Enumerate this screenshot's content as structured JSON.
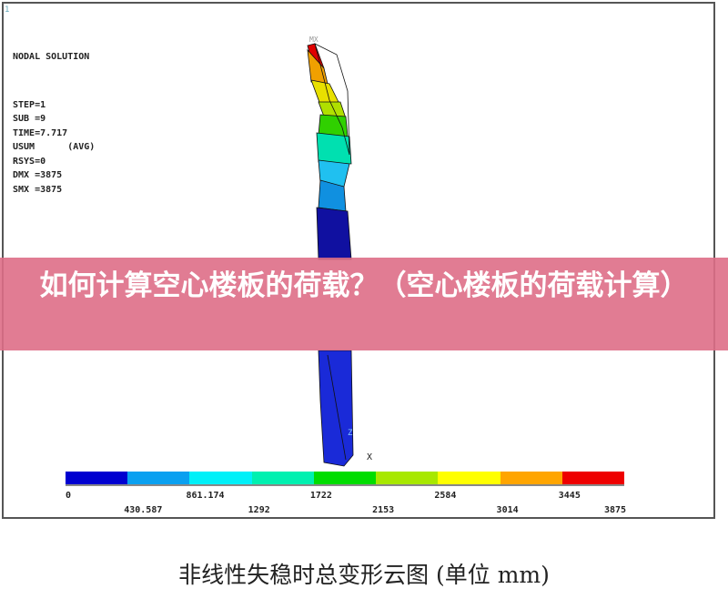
{
  "plot": {
    "window_number": "1",
    "title": "NODAL SOLUTION",
    "lines": [
      "STEP=1",
      "SUB =9",
      "TIME=7.717",
      "USUM      (AVG)",
      "RSYS=0",
      "DMX =3875",
      "SMX =3875"
    ],
    "axis_labels": {
      "top": "MX",
      "z": "Z",
      "x": "X"
    }
  },
  "legend": {
    "colors": [
      "#0000d0",
      "#0aa0f0",
      "#00f0f8",
      "#00f0b0",
      "#00dd00",
      "#a8e800",
      "#ffff00",
      "#ffa500",
      "#ee0000"
    ],
    "ticks": [
      "0",
      "430.587",
      "861.174",
      "1292",
      "1722",
      "2153",
      "2584",
      "3014",
      "3445",
      "3875"
    ]
  },
  "banner": {
    "text": "如何计算空心楼板的荷载？（空心楼板的荷载计算）"
  },
  "caption": {
    "text": "非线性失稳时总变形云图 (单位 mm)"
  }
}
